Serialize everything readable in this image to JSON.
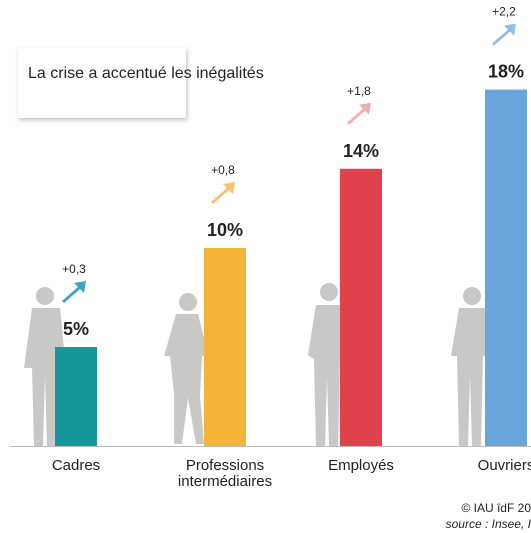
{
  "chart_data": {
    "type": "bar",
    "title": "La crise a accentué les inégalités",
    "categories": [
      "Cadres",
      "Professions\nintermédiaires",
      "Employés",
      "Ouvriers"
    ],
    "values": [
      5,
      10,
      14,
      18
    ],
    "value_labels": [
      "5%",
      "10%",
      "14%",
      "18%"
    ],
    "colors": [
      "#15979b",
      "#f6b339",
      "#df424b",
      "#6aa6dc"
    ],
    "changes": [
      0.3,
      0.8,
      1.8,
      2.2
    ],
    "change_labels": [
      "+0,3",
      "+0,8",
      "+1,8",
      "+2,2"
    ],
    "change_colors": [
      "#3aa7b8",
      "#f5c26a",
      "#f3adb2",
      "#8ec0ea"
    ],
    "credit": "© IAU îdF 20",
    "source": "source : Insee, I"
  }
}
